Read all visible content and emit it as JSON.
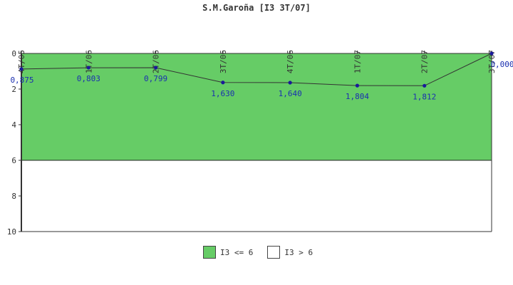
{
  "chart_data": {
    "type": "line",
    "title": "S.M.Garoña [I3 3T/07]",
    "categories": [
      "4T/05",
      "1T/06",
      "2T/06",
      "3T/06",
      "4T/06",
      "1T/07",
      "2T/07",
      "3T/07"
    ],
    "series": [
      {
        "values": [
          0.875,
          0.803,
          0.799,
          1.63,
          1.64,
          1.804,
          1.812,
          0.0
        ],
        "labels": [
          "0,875",
          "0,803",
          "0,799",
          "1,630",
          "1,640",
          "1,804",
          "1,812",
          "0,000"
        ]
      }
    ],
    "yticks": [
      0,
      2,
      4,
      6,
      8,
      10
    ],
    "ylim": [
      0,
      10
    ],
    "y_inverted": true,
    "threshold": 6,
    "bands": [
      {
        "label": "I3 <= 6",
        "from": 0,
        "to": 6,
        "color": "#66cc66"
      },
      {
        "label": "I3 > 6",
        "from": 6,
        "to": 10,
        "color": "#ffffff"
      }
    ],
    "line_color": "#333333",
    "marker_color": "#1a1a99",
    "label_color": "#1a2fb0",
    "legend_position": "bottom-center"
  }
}
